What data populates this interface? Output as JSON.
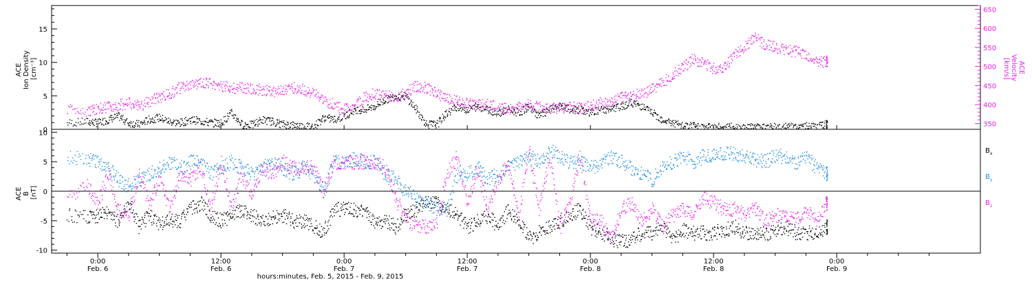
{
  "chart_data": [
    {
      "type": "scatter",
      "panel": "top",
      "ylabel_lines": [
        "ACE",
        "Ion Density",
        "[cm⁻³]"
      ],
      "y2label_lines": [
        "ACE",
        "Velocity",
        "[km/s]"
      ],
      "ylim": [
        0,
        18.5
      ],
      "y2lim": [
        335,
        660
      ],
      "yticks": [
        0,
        5,
        10,
        15
      ],
      "y2ticks": [
        350,
        400,
        450,
        500,
        550,
        600,
        650
      ],
      "series": [
        {
          "key": "density",
          "color": "#000000",
          "axis": "left",
          "x": [
            -3,
            -1,
            0,
            1,
            2,
            3,
            4,
            5,
            6,
            7,
            8,
            9,
            10,
            11,
            12,
            13,
            14,
            15,
            16,
            17,
            18,
            19,
            20,
            21,
            22,
            23,
            24,
            25,
            26,
            27,
            28,
            29,
            30,
            31,
            32,
            33,
            34,
            35,
            36,
            37,
            38,
            39,
            40,
            41,
            42,
            43,
            44,
            45,
            46,
            47,
            48,
            49,
            50,
            51,
            52,
            53,
            54,
            55,
            56,
            57,
            58,
            59,
            60,
            61,
            62,
            63,
            64,
            65,
            66,
            67,
            68,
            69,
            70,
            71
          ],
          "y": [
            1.0,
            1.2,
            1.0,
            1.5,
            2.0,
            1.0,
            0.8,
            1.5,
            1.8,
            1.2,
            1.0,
            1.5,
            1.3,
            1.0,
            1.0,
            2.5,
            0.8,
            0.7,
            1.5,
            1.2,
            0.8,
            0.7,
            0.5,
            0.5,
            1.8,
            1.5,
            2.0,
            3.0,
            3.0,
            3.5,
            4.5,
            5.0,
            5.0,
            3.0,
            0.8,
            0.8,
            2.5,
            3.5,
            3.0,
            3.5,
            3.0,
            2.5,
            3.0,
            2.5,
            3.5,
            2.0,
            3.0,
            3.5,
            3.0,
            3.0,
            2.5,
            3.0,
            3.0,
            3.5,
            4.0,
            3.5,
            2.5,
            1.5,
            1.0,
            0.5,
            0.5,
            0.4,
            0.4,
            0.4,
            0.4,
            0.4,
            0.4,
            0.4,
            0.4,
            0.4,
            0.4,
            0.5,
            0.4,
            0.8
          ]
        },
        {
          "key": "velocity",
          "color": "#e61ee6",
          "axis": "right",
          "x": [
            -3,
            -1,
            0,
            1,
            2,
            3,
            4,
            5,
            6,
            7,
            8,
            9,
            10,
            11,
            12,
            13,
            14,
            15,
            16,
            17,
            18,
            19,
            20,
            21,
            22,
            23,
            24,
            25,
            26,
            27,
            28,
            29,
            30,
            31,
            32,
            33,
            34,
            35,
            36,
            37,
            38,
            39,
            40,
            41,
            42,
            43,
            44,
            45,
            46,
            47,
            48,
            49,
            50,
            51,
            52,
            53,
            54,
            55,
            56,
            57,
            58,
            59,
            60,
            61,
            62,
            63,
            64,
            65,
            66,
            67,
            68,
            69,
            70,
            71
          ],
          "y": [
            390,
            385,
            390,
            395,
            400,
            405,
            395,
            410,
            420,
            430,
            445,
            450,
            460,
            455,
            450,
            445,
            445,
            440,
            440,
            435,
            440,
            445,
            440,
            430,
            410,
            400,
            390,
            395,
            420,
            430,
            425,
            420,
            430,
            450,
            445,
            430,
            415,
            410,
            405,
            400,
            400,
            395,
            390,
            395,
            400,
            395,
            390,
            390,
            395,
            390,
            400,
            405,
            410,
            420,
            425,
            430,
            440,
            460,
            480,
            500,
            520,
            510,
            495,
            500,
            530,
            555,
            575,
            560,
            550,
            545,
            540,
            530,
            510,
            515
          ]
        }
      ]
    },
    {
      "type": "scatter",
      "panel": "bottom",
      "ylabel_lines": [
        "ACE",
        "B",
        "[nT]"
      ],
      "ylim": [
        -10.5,
        10.5
      ],
      "yticks": [
        -10,
        -5,
        0,
        5,
        10
      ],
      "zero_line": true,
      "legend": {
        "placement": "right",
        "entries": [
          "B",
          "B",
          "B"
        ],
        "subs": [
          "x",
          "y",
          "z"
        ]
      },
      "series": [
        {
          "key": "bx",
          "color": "#000000",
          "x": [
            -3,
            -1,
            0,
            1,
            2,
            3,
            4,
            5,
            6,
            7,
            8,
            9,
            10,
            11,
            12,
            13,
            14,
            15,
            16,
            17,
            18,
            19,
            20,
            21,
            22,
            23,
            24,
            25,
            26,
            27,
            28,
            29,
            30,
            31,
            32,
            33,
            34,
            35,
            36,
            37,
            38,
            39,
            40,
            41,
            42,
            43,
            44,
            45,
            46,
            47,
            48,
            49,
            50,
            51,
            52,
            53,
            54,
            55,
            56,
            57,
            58,
            59,
            60,
            61,
            62,
            63,
            64,
            65,
            66,
            67,
            68,
            69,
            70,
            71
          ],
          "y": [
            -4,
            -4.5,
            -4,
            -3.5,
            -5,
            -2,
            -6,
            -4,
            -5.5,
            -5,
            -5,
            -3,
            -2,
            -4,
            -5,
            -4,
            -3,
            -4,
            -5,
            -4.5,
            -4,
            -5,
            -5,
            -6,
            -7,
            -3,
            -3,
            -3,
            -3.5,
            -5,
            -5,
            -6,
            -4,
            -3,
            -2,
            -2,
            -3,
            -4,
            -6,
            -5,
            -4,
            -6,
            -3,
            -5,
            -8,
            -7,
            -6,
            -5,
            -4,
            -3,
            -6,
            -7,
            -8,
            -8.5,
            -8,
            -7,
            -7,
            -6,
            -8,
            -6.5,
            -7,
            -7,
            -7,
            -6.5,
            -6,
            -7,
            -7.5,
            -7,
            -7,
            -6,
            -7,
            -7,
            -7,
            -6
          ]
        },
        {
          "key": "by",
          "color": "#1e8ce6",
          "x": [
            -3,
            -1,
            0,
            1,
            2,
            3,
            4,
            5,
            6,
            7,
            8,
            9,
            10,
            11,
            12,
            13,
            14,
            15,
            16,
            17,
            18,
            19,
            20,
            21,
            22,
            23,
            24,
            25,
            26,
            27,
            28,
            29,
            30,
            31,
            32,
            33,
            34,
            35,
            36,
            37,
            38,
            39,
            40,
            41,
            42,
            43,
            44,
            45,
            46,
            47,
            48,
            49,
            50,
            51,
            52,
            53,
            54,
            55,
            56,
            57,
            58,
            59,
            60,
            61,
            62,
            63,
            64,
            65,
            66,
            67,
            68,
            69,
            70,
            71
          ],
          "y": [
            6,
            5.5,
            5,
            4,
            2,
            1,
            2,
            3,
            4,
            5,
            4,
            5,
            5,
            3,
            4,
            5,
            4,
            3,
            4,
            5,
            4,
            3,
            4,
            3,
            0,
            5,
            5,
            5.5,
            5,
            5,
            3,
            2,
            0,
            -1,
            -2,
            -3,
            -3,
            3,
            3,
            4,
            2,
            3,
            4,
            5,
            6,
            5,
            7,
            6,
            5,
            5,
            4,
            5,
            6,
            5,
            4,
            3,
            2,
            4,
            5,
            6,
            5,
            6,
            6,
            6.5,
            6.5,
            6,
            5.5,
            5,
            6,
            6,
            5,
            6,
            4,
            3
          ]
        },
        {
          "key": "bz",
          "color": "#e61ee6",
          "x": [
            -3,
            -1,
            0,
            1,
            2,
            3,
            4,
            5,
            6,
            7,
            8,
            9,
            10,
            11,
            12,
            13,
            14,
            15,
            16,
            17,
            18,
            19,
            20,
            21,
            22,
            23,
            24,
            25,
            26,
            27,
            28,
            29,
            30,
            31,
            32,
            33,
            34,
            35,
            36,
            37,
            38,
            39,
            40,
            41,
            42,
            43,
            44,
            45,
            46,
            47,
            48,
            49,
            50,
            51,
            52,
            53,
            54,
            55,
            56,
            57,
            58,
            59,
            60,
            61,
            62,
            63,
            64,
            65,
            66,
            67,
            68,
            69,
            70,
            71
          ],
          "y": [
            -1,
            1,
            -2,
            3,
            -3,
            -4,
            3,
            -2,
            2,
            -3,
            3,
            2,
            4,
            -3,
            5,
            -3,
            3,
            -1,
            4,
            3,
            5,
            4,
            4,
            4,
            0,
            5,
            5,
            5,
            5,
            5,
            4,
            -1,
            -5,
            -6,
            -6,
            -5,
            3,
            6,
            -2,
            4,
            -3,
            2,
            5,
            -4,
            7,
            -3,
            6,
            -6,
            -2,
            6,
            -5,
            -5,
            -8,
            -3,
            -2,
            -5,
            -3,
            -6,
            -4,
            -3,
            -4,
            -1,
            -2,
            -3,
            -3,
            -4,
            -3,
            -5,
            -4,
            -4,
            -5,
            -3,
            -5,
            -2
          ]
        }
      ]
    }
  ],
  "x_axis": {
    "xlim": [
      -4.5,
      86
    ],
    "ticks": [
      {
        "x": 0,
        "time": "0:00",
        "day": "Feb. 6"
      },
      {
        "x": 12,
        "time": "12:00",
        "day": "Feb. 6"
      },
      {
        "x": 24,
        "time": "0:00",
        "day": "Feb. 7"
      },
      {
        "x": 36,
        "time": "12:00",
        "day": "Feb. 7"
      },
      {
        "x": 48,
        "time": "0:00",
        "day": "Feb. 8"
      },
      {
        "x": 60,
        "time": "12:00",
        "day": "Feb. 8"
      },
      {
        "x": 72,
        "time": "0:00",
        "day": "Feb. 9"
      }
    ],
    "title": "hours:minutes, Feb. 5, 2015 - Feb. 9, 2015"
  }
}
